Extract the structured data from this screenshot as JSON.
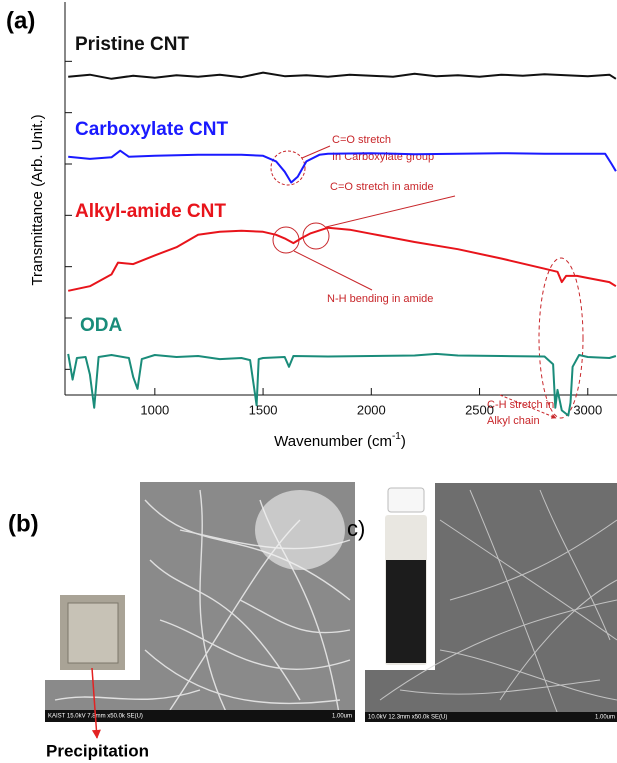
{
  "chart_data": {
    "type": "line",
    "panel_label": "(a)",
    "x_label": "Wavenumber (cm",
    "x_label_sup": "-1",
    "x_label_end": ")",
    "y_label": "Transmittance (Arb. Unit.)",
    "xlim": [
      585,
      3135
    ],
    "xticks": [
      1000,
      1500,
      2000,
      2500,
      3000
    ],
    "ylim": [
      0.5,
      8
    ],
    "yticks": [
      1,
      2,
      3,
      4,
      5,
      6,
      7
    ],
    "series": [
      {
        "name": "Pristine CNT",
        "color": "#111111",
        "x": [
          600,
          700,
          800,
          900,
          1000,
          1100,
          1200,
          1300,
          1400,
          1500,
          1600,
          1700,
          1800,
          1900,
          2000,
          2100,
          2200,
          2300,
          2400,
          2500,
          2600,
          2700,
          2800,
          2900,
          3000,
          3100,
          3130
        ],
        "values": [
          6.7,
          6.74,
          6.66,
          6.72,
          6.68,
          6.73,
          6.7,
          6.74,
          6.69,
          6.78,
          6.71,
          6.73,
          6.7,
          6.74,
          6.72,
          6.7,
          6.76,
          6.71,
          6.73,
          6.7,
          6.74,
          6.72,
          6.75,
          6.73,
          6.71,
          6.74,
          6.66
        ]
      },
      {
        "name": "Carboxylate CNT",
        "color": "#1a1aff",
        "x": [
          600,
          700,
          800,
          840,
          880,
          1000,
          1200,
          1400,
          1500,
          1560,
          1600,
          1630,
          1660,
          1700,
          1760,
          1800,
          2000,
          2200,
          2400,
          2600,
          2800,
          3000,
          3080,
          3110,
          3130
        ],
        "values": [
          5.14,
          5.1,
          5.13,
          5.26,
          5.14,
          5.16,
          5.18,
          5.18,
          5.16,
          5.05,
          4.85,
          4.64,
          4.75,
          5.05,
          5.18,
          5.2,
          5.21,
          5.19,
          5.2,
          5.21,
          5.2,
          5.2,
          5.2,
          5.0,
          4.86
        ]
      },
      {
        "name": "Alkyl-amide CNT",
        "color": "#e8141b",
        "x": [
          600,
          700,
          800,
          830,
          900,
          1000,
          1100,
          1200,
          1300,
          1400,
          1500,
          1560,
          1600,
          1640,
          1680,
          1720,
          1800,
          1900,
          2000,
          2200,
          2400,
          2600,
          2800,
          2860,
          2880,
          2900,
          2950,
          3000,
          3100,
          3130
        ],
        "values": [
          2.53,
          2.62,
          2.85,
          3.08,
          3.05,
          3.22,
          3.38,
          3.62,
          3.68,
          3.7,
          3.68,
          3.62,
          3.55,
          3.46,
          3.56,
          3.65,
          3.76,
          3.72,
          3.64,
          3.48,
          3.34,
          3.16,
          2.96,
          2.9,
          2.7,
          2.82,
          2.82,
          2.78,
          2.7,
          2.62
        ]
      },
      {
        "name": "ODA",
        "color": "#1a8c7a",
        "x": [
          600,
          620,
          640,
          680,
          700,
          720,
          740,
          800,
          880,
          900,
          920,
          940,
          1000,
          1100,
          1200,
          1300,
          1400,
          1440,
          1460,
          1470,
          1480,
          1500,
          1600,
          1620,
          1640,
          1800,
          2000,
          2200,
          2300,
          2400,
          2600,
          2800,
          2840,
          2850,
          2860,
          2880,
          2910,
          2920,
          2930,
          2960,
          3000,
          3100,
          3130
        ],
        "values": [
          1.3,
          0.8,
          1.22,
          1.24,
          0.9,
          0.25,
          1.24,
          1.28,
          1.22,
          0.85,
          0.62,
          1.2,
          1.28,
          1.24,
          1.26,
          1.2,
          1.22,
          1.18,
          0.6,
          0.3,
          1.2,
          1.22,
          1.24,
          1.05,
          1.26,
          1.25,
          1.26,
          1.27,
          1.3,
          1.27,
          1.26,
          1.25,
          1.1,
          0.25,
          0.6,
          0.2,
          0.1,
          0.35,
          1.05,
          1.28,
          1.24,
          1.22,
          1.26
        ]
      }
    ],
    "annotations": [
      "C=O stretch",
      "In Carboxylate group",
      "C=O stretch in amide",
      "N-H bending  in amide",
      "C-H stretch in",
      "Alkyl chain"
    ]
  },
  "panels": {
    "b": {
      "label": "(b)",
      "sem_caption": "KAIST 15.0kV 7.8mm x50.0k SE(U)",
      "scale": "1.00um",
      "note": "Precipitation"
    },
    "c": {
      "label": "c)",
      "sem_caption": "10.0kV 12.3mm x50.0k SE(U)",
      "scale": "1.00um"
    }
  }
}
